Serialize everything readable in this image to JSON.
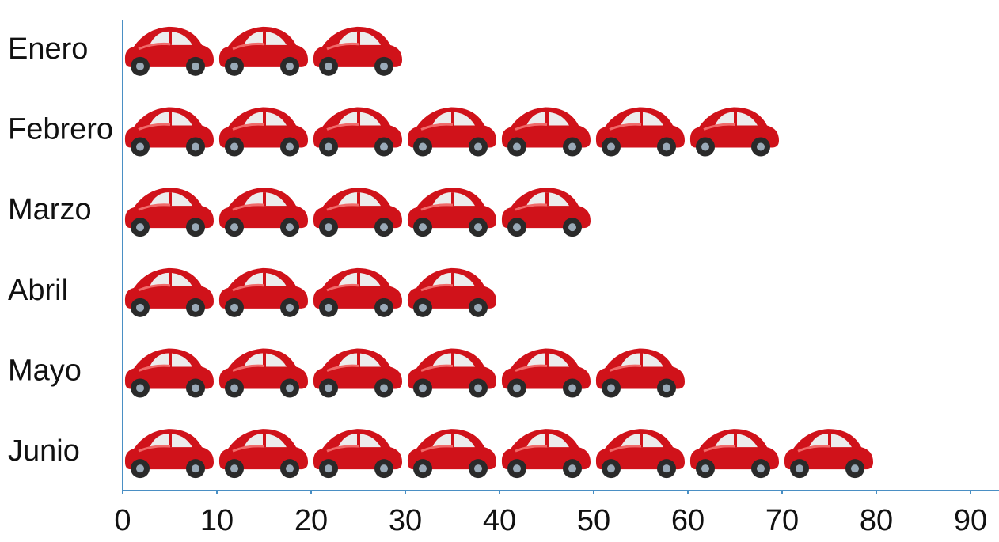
{
  "chart_data": {
    "type": "pictograph",
    "categories": [
      "Enero",
      "Febrero",
      "Marzo",
      "Abril",
      "Mayo",
      "Junio"
    ],
    "values": [
      30,
      70,
      50,
      40,
      60,
      80
    ],
    "color": "#d0121a",
    "xlim": [
      0,
      90
    ],
    "xticks": [
      0,
      10,
      20,
      30,
      40,
      50,
      60,
      70,
      80,
      90
    ]
  }
}
